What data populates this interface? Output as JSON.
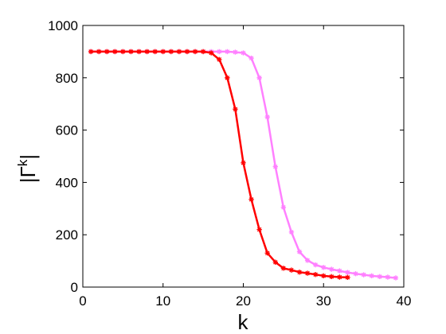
{
  "chart_data": {
    "type": "line",
    "title": "",
    "xlabel": "k",
    "ylabel_main": "|Γ",
    "ylabel_sup": "k",
    "ylabel_close": "|",
    "xlim": [
      0,
      40
    ],
    "ylim": [
      0,
      1000
    ],
    "xticks": [
      0,
      10,
      20,
      30,
      40
    ],
    "yticks": [
      0,
      200,
      400,
      600,
      800,
      1000
    ],
    "grid": false,
    "legend": "none",
    "series": [
      {
        "color": "#ff80ff",
        "marker": "star",
        "x": [
          1,
          2,
          3,
          4,
          5,
          6,
          7,
          8,
          9,
          10,
          11,
          12,
          13,
          14,
          15,
          16,
          17,
          18,
          19,
          20,
          21,
          22,
          23,
          24,
          25,
          26,
          27,
          28,
          29,
          30,
          31,
          32,
          33,
          34,
          35,
          36,
          37,
          38,
          39
        ],
        "y": [
          900,
          900,
          900,
          900,
          900,
          900,
          900,
          900,
          900,
          900,
          900,
          900,
          900,
          900,
          900,
          900,
          900,
          900,
          898,
          895,
          875,
          800,
          650,
          460,
          305,
          210,
          135,
          102,
          85,
          75,
          68,
          62,
          56,
          51,
          47,
          43,
          40,
          38,
          35
        ]
      },
      {
        "color": "#ff0000",
        "marker": "star",
        "x": [
          1,
          2,
          3,
          4,
          5,
          6,
          7,
          8,
          9,
          10,
          11,
          12,
          13,
          14,
          15,
          16,
          17,
          18,
          19,
          20,
          21,
          22,
          23,
          24,
          25,
          26,
          27,
          28,
          29,
          30,
          31,
          32,
          33
        ],
        "y": [
          900,
          900,
          900,
          900,
          900,
          900,
          900,
          900,
          900,
          900,
          900,
          900,
          900,
          900,
          900,
          895,
          870,
          800,
          680,
          475,
          335,
          220,
          130,
          95,
          72,
          65,
          57,
          53,
          48,
          43,
          40,
          38,
          37
        ]
      }
    ]
  }
}
